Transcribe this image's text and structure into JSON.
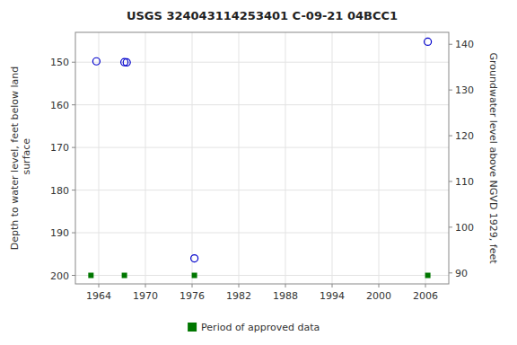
{
  "chart_data": {
    "type": "scatter",
    "title": "USGS 324043114253401 C-09-21 04BCC1",
    "y_label": "Depth to water level, feet below land\n surface",
    "y2_label": "Groundwater level above NGVD 1929, feet",
    "series": [
      {
        "x": [
          1963.7,
          1967.3,
          1967.6,
          1976.3,
          2006.3
        ],
        "values": [
          149.8,
          150.0,
          150.05,
          196.0,
          145.2
        ],
        "color": "#0000cc",
        "marker": "circle-open"
      },
      {
        "name": "Period of approved data",
        "x": [
          1963.0,
          1967.3,
          1976.3,
          2006.3
        ],
        "values": [
          200,
          200,
          200,
          200
        ],
        "color": "#007700",
        "marker": "square"
      }
    ],
    "xlim": [
      1961,
      2009
    ],
    "xticks": [
      1964,
      1970,
      1976,
      1982,
      1988,
      1994,
      2000,
      2006
    ],
    "ylim": [
      202,
      143
    ],
    "yticks": [
      150,
      160,
      170,
      180,
      190,
      200
    ],
    "y2lim": [
      87.6,
      142.6
    ],
    "y2ticks": [
      90,
      100,
      110,
      120,
      130,
      140
    ],
    "grid": true,
    "legend": "bottom"
  }
}
